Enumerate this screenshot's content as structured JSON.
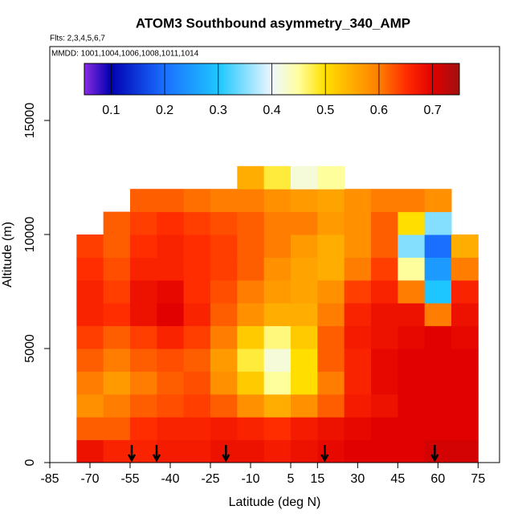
{
  "chart_data": {
    "type": "heatmap",
    "title": "ATOM3 Southbound asymmetry_340_AMP",
    "subtitle": "Flts: 2,3,4,5,6,7",
    "annotation": "MMDD: 1001,1004,1006,1008,1011,1014",
    "x_label": "Latitude (deg N)",
    "y_label": "Altitude (m)",
    "xlim": [
      -85,
      83
    ],
    "ylim": [
      0,
      18240
    ],
    "xticks": [
      -85,
      -70,
      -55,
      -40,
      -25,
      -10,
      5,
      15,
      30,
      45,
      60,
      75
    ],
    "yticks": [
      0,
      5000,
      10000,
      15000
    ],
    "x_bins": [
      -75,
      -65,
      -55,
      -45,
      -35,
      -25,
      -15,
      -5,
      5,
      15,
      25,
      35,
      45,
      55,
      65,
      75
    ],
    "y_bins": [
      0,
      1000,
      2000,
      3000,
      4000,
      5000,
      6000,
      7000,
      8000,
      9000,
      10000,
      11000,
      12000,
      13000
    ],
    "z": [
      [
        0.68,
        0.66,
        0.66,
        0.67,
        0.67,
        0.68,
        0.68,
        0.67,
        0.68,
        0.69,
        0.7,
        0.7,
        0.7,
        0.71,
        0.71
      ],
      [
        0.62,
        0.62,
        0.65,
        0.66,
        0.66,
        0.67,
        0.66,
        0.65,
        0.67,
        0.68,
        0.69,
        0.7,
        0.7,
        0.7,
        0.7
      ],
      [
        0.58,
        0.6,
        0.62,
        0.63,
        0.64,
        0.62,
        0.58,
        0.55,
        0.58,
        0.62,
        0.67,
        0.68,
        0.7,
        0.7,
        0.7
      ],
      [
        0.6,
        0.57,
        0.6,
        0.62,
        0.63,
        0.58,
        0.52,
        0.45,
        0.5,
        0.6,
        0.66,
        0.69,
        0.7,
        0.7,
        0.7
      ],
      [
        0.62,
        0.6,
        0.62,
        0.63,
        0.62,
        0.57,
        0.48,
        0.42,
        0.5,
        0.62,
        0.66,
        0.69,
        0.7,
        0.7,
        0.7
      ],
      [
        0.64,
        0.62,
        0.64,
        0.66,
        0.64,
        0.6,
        0.52,
        0.46,
        0.52,
        0.62,
        0.67,
        0.68,
        0.69,
        0.7,
        0.69
      ],
      [
        0.66,
        0.65,
        0.68,
        0.7,
        0.66,
        0.62,
        0.58,
        0.55,
        0.55,
        0.6,
        0.66,
        0.68,
        0.68,
        0.6,
        0.68
      ],
      [
        0.66,
        0.64,
        0.68,
        0.69,
        0.65,
        0.63,
        0.6,
        0.57,
        0.56,
        0.58,
        0.64,
        0.66,
        0.6,
        0.3,
        0.66
      ],
      [
        0.65,
        0.63,
        0.66,
        0.66,
        0.65,
        0.64,
        0.62,
        0.58,
        0.56,
        0.55,
        0.6,
        0.64,
        0.45,
        0.25,
        0.6
      ],
      [
        0.64,
        0.62,
        0.65,
        0.66,
        0.65,
        0.64,
        0.62,
        0.6,
        0.57,
        0.55,
        0.58,
        0.62,
        0.35,
        0.2,
        0.55
      ],
      [
        null,
        0.62,
        0.64,
        0.65,
        0.64,
        0.63,
        0.62,
        0.6,
        0.6,
        0.57,
        0.58,
        0.62,
        0.5,
        0.35,
        null
      ],
      [
        null,
        null,
        0.62,
        0.62,
        0.61,
        0.6,
        0.6,
        0.58,
        0.57,
        0.56,
        0.58,
        0.6,
        0.6,
        0.58,
        null
      ],
      [
        null,
        null,
        null,
        null,
        null,
        null,
        0.55,
        0.48,
        0.42,
        0.45,
        null,
        null,
        null,
        null,
        null
      ]
    ],
    "clim": [
      0.05,
      0.75
    ],
    "cticks": [
      0.1,
      0.2,
      0.3,
      0.4,
      0.5,
      0.6,
      0.7
    ],
    "arrows_lat": [
      -54.4,
      -45.1,
      -19.2,
      17.7,
      58.8
    ]
  }
}
